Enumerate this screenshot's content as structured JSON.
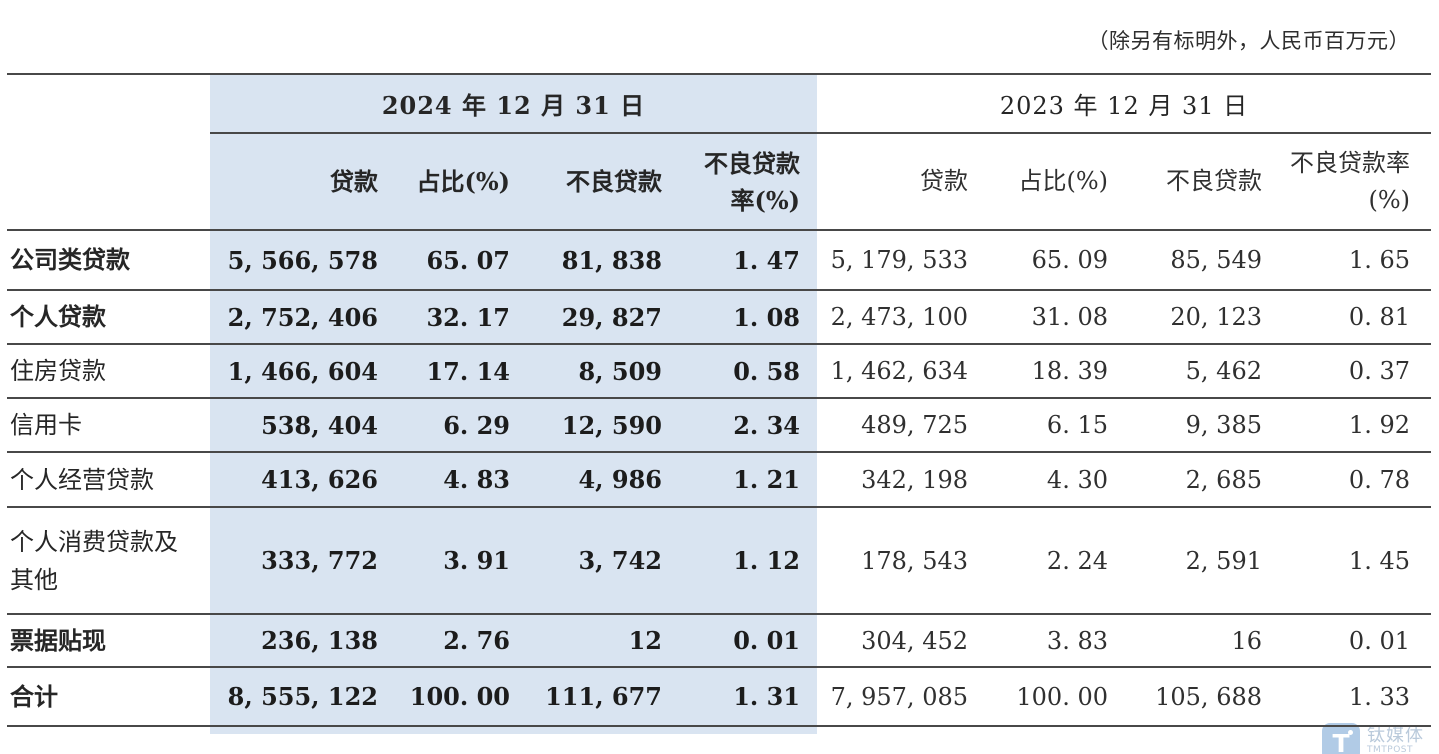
{
  "note": "（除另有标明外，人民币百万元）",
  "table": {
    "groups": [
      {
        "title": "2024 年 12 月 31 日",
        "columns": [
          "贷款",
          "占比(%)",
          "不良贷款",
          "不良贷款\n率(%)"
        ]
      },
      {
        "title": "2023 年 12 月 31 日",
        "columns": [
          "贷款",
          "占比(%)",
          "不良贷款",
          "不良贷款率\n(%)"
        ]
      }
    ],
    "rows": [
      {
        "label": "公司类贷款",
        "bold": true,
        "y2024": [
          "5,566,578",
          "65.07",
          "81,838",
          "1.47"
        ],
        "y2023": [
          "5,179,533",
          "65.09",
          "85,549",
          "1.65"
        ]
      },
      {
        "label": "个人贷款",
        "bold": true,
        "y2024": [
          "2,752,406",
          "32.17",
          "29,827",
          "1.08"
        ],
        "y2023": [
          "2,473,100",
          "31.08",
          "20,123",
          "0.81"
        ]
      },
      {
        "label": "住房贷款",
        "bold": false,
        "y2024": [
          "1,466,604",
          "17.14",
          "8,509",
          "0.58"
        ],
        "y2023": [
          "1,462,634",
          "18.39",
          "5,462",
          "0.37"
        ]
      },
      {
        "label": "信用卡",
        "bold": false,
        "y2024": [
          "538,404",
          "6.29",
          "12,590",
          "2.34"
        ],
        "y2023": [
          "489,725",
          "6.15",
          "9,385",
          "1.92"
        ]
      },
      {
        "label": "个人经营贷款",
        "bold": false,
        "y2024": [
          "413,626",
          "4.83",
          "4,986",
          "1.21"
        ],
        "y2023": [
          "342,198",
          "4.30",
          "2,685",
          "0.78"
        ]
      },
      {
        "label": "个人消费贷款及\n其他",
        "bold": false,
        "y2024": [
          "333,772",
          "3.91",
          "3,742",
          "1.12"
        ],
        "y2023": [
          "178,543",
          "2.24",
          "2,591",
          "1.45"
        ]
      },
      {
        "label": "票据贴现",
        "bold": true,
        "y2024": [
          "236,138",
          "2.76",
          "12",
          "0.01"
        ],
        "y2023": [
          "304,452",
          "3.83",
          "16",
          "0.01"
        ]
      },
      {
        "label": "合计",
        "bold": true,
        "y2024": [
          "8,555,122",
          "100.00",
          "111,677",
          "1.31"
        ],
        "y2023": [
          "7,957,085",
          "100.00",
          "105,688",
          "1.33"
        ]
      }
    ]
  },
  "watermark": {
    "logo_letter": "T",
    "name_cn": "钛媒体",
    "name_en": "TMTPOST"
  },
  "colors": {
    "highlight": "#d9e4f1",
    "rule": "#484848",
    "watermark_blue": "#a9c6e4"
  }
}
